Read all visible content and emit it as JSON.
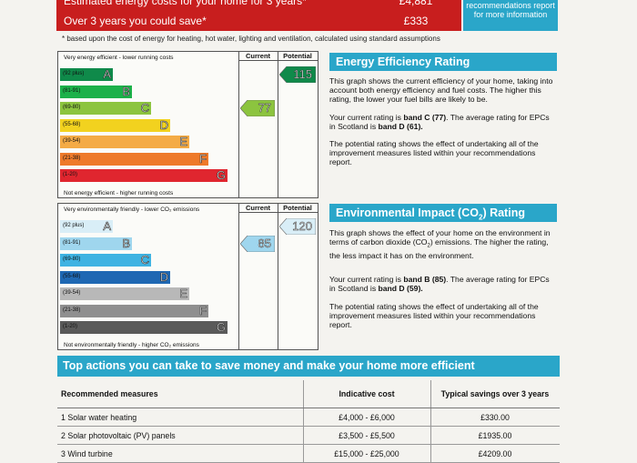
{
  "top_rows": [
    {
      "label": "Estimated energy costs for your home for 3 years*",
      "value": "£4,881",
      "color": "#c81e1e"
    },
    {
      "label": "Over 3 years you could save*",
      "value": "£333",
      "color": "#c81e1e"
    }
  ],
  "top_note": "recommendations report for more information",
  "footnote": "* based upon the cost of energy for heating, hot water, lighting and ventilation, calculated using standard assumptions",
  "energy_chart": {
    "col_current": "Current",
    "col_potential": "Potential",
    "top_label": "Very energy efficient - lower running costs",
    "bottom_label": "Not energy efficient - higher running costs",
    "bands": [
      {
        "range": "(92 plus)",
        "letter": "A",
        "color": "#0f8a4a"
      },
      {
        "range": "(81-91)",
        "letter": "B",
        "color": "#1cb14a"
      },
      {
        "range": "(69-80)",
        "letter": "C",
        "color": "#8cc43f"
      },
      {
        "range": "(55-68)",
        "letter": "D",
        "color": "#f2d21f"
      },
      {
        "range": "(39-54)",
        "letter": "E",
        "color": "#f4ab45"
      },
      {
        "range": "(21-38)",
        "letter": "F",
        "color": "#ee7a2a"
      },
      {
        "range": "(1-20)",
        "letter": "G",
        "color": "#e0262f"
      }
    ],
    "current": 77,
    "current_color": "#8cc43f",
    "potential": 115,
    "potential_color": "#0f8a4a"
  },
  "environment_chart": {
    "col_current": "Current",
    "col_potential": "Potential",
    "top_label": "Very environmentally friendly - lower CO₂ emissions",
    "bottom_label": "Not environmentally friendly - higher CO₂ emissions",
    "bands": [
      {
        "range": "(92 plus)",
        "letter": "A",
        "color": "#d9eef7"
      },
      {
        "range": "(81-91)",
        "letter": "B",
        "color": "#9fd6ee"
      },
      {
        "range": "(69-80)",
        "letter": "C",
        "color": "#3fb3e2"
      },
      {
        "range": "(55-68)",
        "letter": "D",
        "color": "#1f68b3"
      },
      {
        "range": "(39-54)",
        "letter": "E",
        "color": "#b8b8b8"
      },
      {
        "range": "(21-38)",
        "letter": "F",
        "color": "#8f8f8f"
      },
      {
        "range": "(1-20)",
        "letter": "G",
        "color": "#5a5a5a"
      }
    ],
    "current": 85,
    "current_color": "#9fd6ee",
    "potential": 120,
    "potential_color": "#d9eef7"
  },
  "energy_panel": {
    "title": "Energy Efficiency Rating",
    "p1": "This graph shows the current efficiency of your home, taking into account both energy efficiency and fuel costs. The higher this rating, the lower your fuel bills are likely to be.",
    "p2_a": "Your current rating is ",
    "p2_b": "band C (77)",
    "p2_c": ". The average rating for EPCs in Scotland is ",
    "p2_d": "band D (61).",
    "p3": "The potential rating shows the effect of undertaking all of the improvement measures listed within your recommendations report."
  },
  "environment_panel": {
    "title_a": "Environmental Impact (CO",
    "title_sub": "2",
    "title_b": ") Rating",
    "p1_a": "This graph shows the effect of your home on the environment in terms of carbon dioxide (CO",
    "p1_sub": "2",
    "p1_b": ") emissions. The higher the rating, the less impact it has on the environment.",
    "p2_a": "Your current rating is ",
    "p2_b": "band B (85)",
    "p2_c": ". The average rating for EPCs in Scotland is ",
    "p2_d": "band D (59).",
    "p3": "The potential rating shows the effect of undertaking all of the improvement measures listed within your recommendations report."
  },
  "actions": {
    "title": "Top actions you can take to save money and make your home more efficient",
    "headers": [
      "Recommended measures",
      "Indicative cost",
      "Typical savings over 3 years"
    ],
    "rows": [
      [
        "1 Solar water heating",
        "£4,000 - £6,000",
        "£330.00"
      ],
      [
        "2 Solar photovoltaic (PV) panels",
        "£3,500 - £5,500",
        "£1935.00"
      ],
      [
        "3 Wind turbine",
        "£15,000 - £25,000",
        "£4209.00"
      ]
    ]
  }
}
